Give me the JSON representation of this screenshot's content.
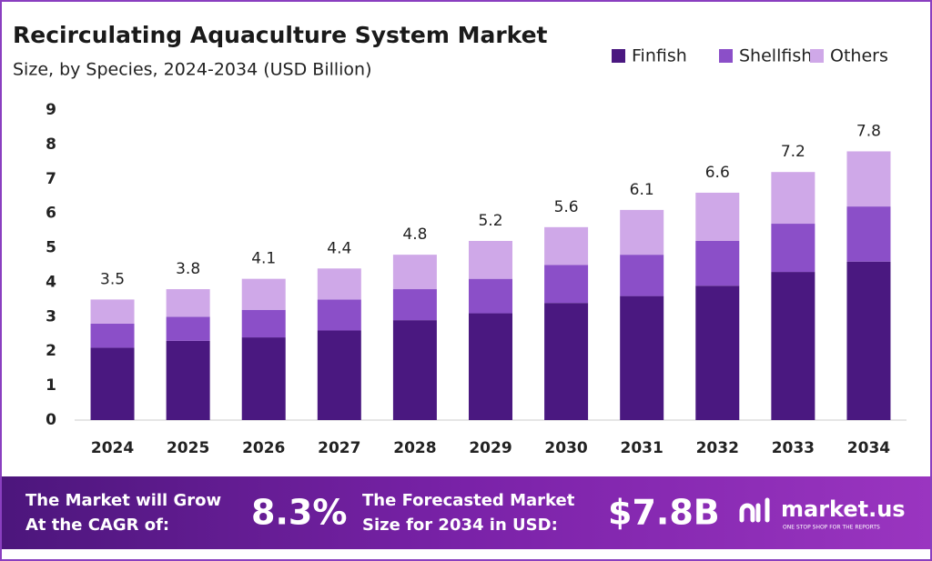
{
  "chart_data": {
    "type": "stacked_bar",
    "title": "Recirculating Aquaculture System Market",
    "subtitle": "Size, by Species, 2024-2034 (USD Billion)",
    "categories": [
      "2024",
      "2025",
      "2026",
      "2027",
      "2028",
      "2029",
      "2030",
      "2031",
      "2032",
      "2033",
      "2034"
    ],
    "series": [
      {
        "name": "Finfish",
        "color": "#4a1880",
        "values": [
          2.1,
          2.3,
          2.4,
          2.6,
          2.9,
          3.1,
          3.4,
          3.6,
          3.9,
          4.3,
          4.6
        ]
      },
      {
        "name": "Shellfish",
        "color": "#8b4fc8",
        "values": [
          0.7,
          0.7,
          0.8,
          0.9,
          0.9,
          1.0,
          1.1,
          1.2,
          1.3,
          1.4,
          1.6
        ]
      },
      {
        "name": "Others",
        "color": "#cfa8e8",
        "values": [
          0.7,
          0.8,
          0.9,
          0.9,
          1.0,
          1.1,
          1.1,
          1.3,
          1.4,
          1.5,
          1.6
        ]
      }
    ],
    "totals": [
      3.5,
      3.8,
      4.1,
      4.4,
      4.8,
      5.2,
      5.6,
      6.1,
      6.6,
      7.2,
      7.8
    ],
    "ylim": [
      0,
      9
    ],
    "yticks": [
      0,
      1,
      2,
      3,
      4,
      5,
      6,
      7,
      8,
      9
    ],
    "grid": false,
    "legend": "top-right"
  },
  "footer": {
    "cagr_label": [
      "The Market will Grow",
      "At the CAGR of:"
    ],
    "cagr": "8.3%",
    "forecast_label": [
      "The Forecasted Market",
      "Size for 2034 in USD:"
    ],
    "forecast": "$7.8B",
    "brand": "market.us",
    "tagline": "ONE STOP SHOP FOR THE REPORTS"
  }
}
